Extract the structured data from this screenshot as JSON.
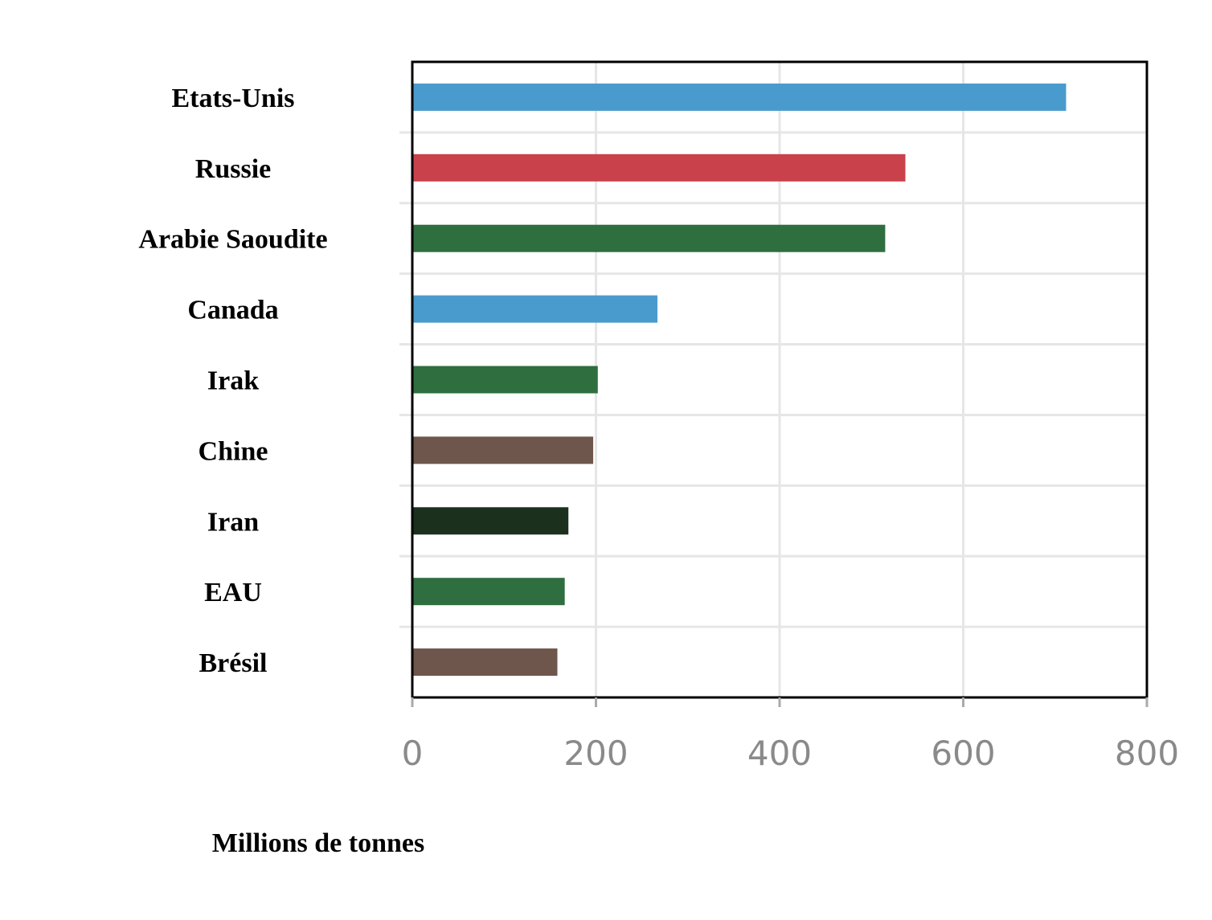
{
  "chart_data": {
    "type": "bar",
    "orientation": "horizontal",
    "categories": [
      "Etats-Unis",
      "Russie",
      "Arabie Saoudite",
      "Canada",
      "Irak",
      "Chine",
      "Iran",
      "EAU",
      "Brésil"
    ],
    "values": [
      712,
      537,
      515,
      267,
      202,
      197,
      170,
      166,
      158
    ],
    "colors": [
      "#4a9bcd",
      "#c9424b",
      "#2f6e3e",
      "#4a9bcd",
      "#2f6e3e",
      "#6f564c",
      "#1b301d",
      "#2f6e3e",
      "#6f564c"
    ],
    "xlabel": "Millions de tonnes",
    "ylabel": "",
    "xlim": [
      0,
      800
    ],
    "xticks": [
      "0",
      "200",
      "400",
      "600",
      "800"
    ],
    "grid": true,
    "legend": "none"
  }
}
